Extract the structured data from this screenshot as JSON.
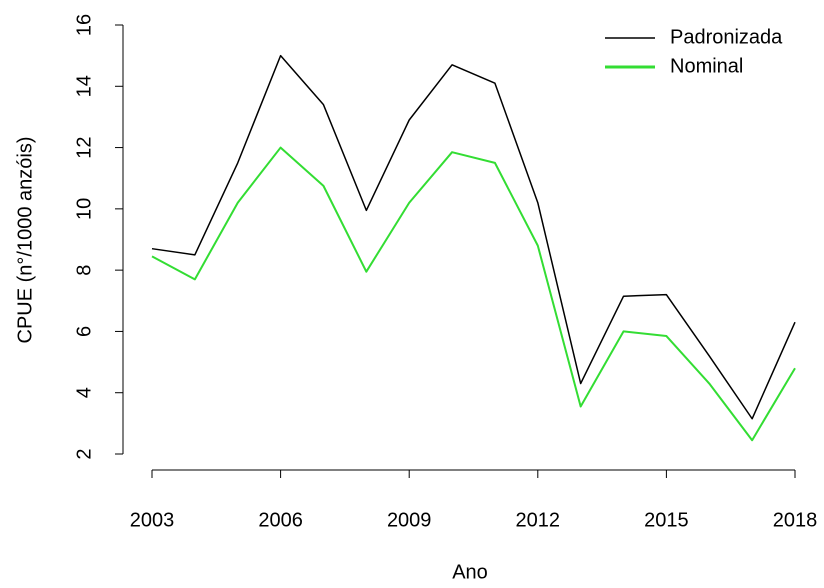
{
  "chart_data": {
    "type": "line",
    "x_label": "Ano",
    "y_label": "CPUE (n°/1000 anzóis)",
    "x": [
      2003,
      2004,
      2005,
      2006,
      2007,
      2008,
      2009,
      2010,
      2011,
      2012,
      2013,
      2014,
      2015,
      2016,
      2017,
      2018
    ],
    "series": [
      {
        "name": "Padronizada",
        "color": "#000000",
        "values": [
          8.7,
          8.5,
          11.5,
          15.0,
          13.4,
          9.95,
          12.9,
          14.7,
          14.1,
          10.2,
          4.3,
          7.15,
          7.2,
          5.2,
          3.15,
          6.3
        ]
      },
      {
        "name": "Nominal",
        "color": "#33dd33",
        "values": [
          8.45,
          7.7,
          10.2,
          12.0,
          10.75,
          7.95,
          10.2,
          11.85,
          11.5,
          8.8,
          3.55,
          6.0,
          5.85,
          4.3,
          2.45,
          4.8
        ]
      }
    ],
    "xlim": [
      2003,
      2018
    ],
    "xticks": [
      2003,
      2006,
      2009,
      2012,
      2015,
      2018
    ],
    "ylim": [
      2,
      16
    ],
    "yticks": [
      2,
      4,
      6,
      8,
      10,
      12,
      14,
      16
    ],
    "legend": "topright"
  }
}
